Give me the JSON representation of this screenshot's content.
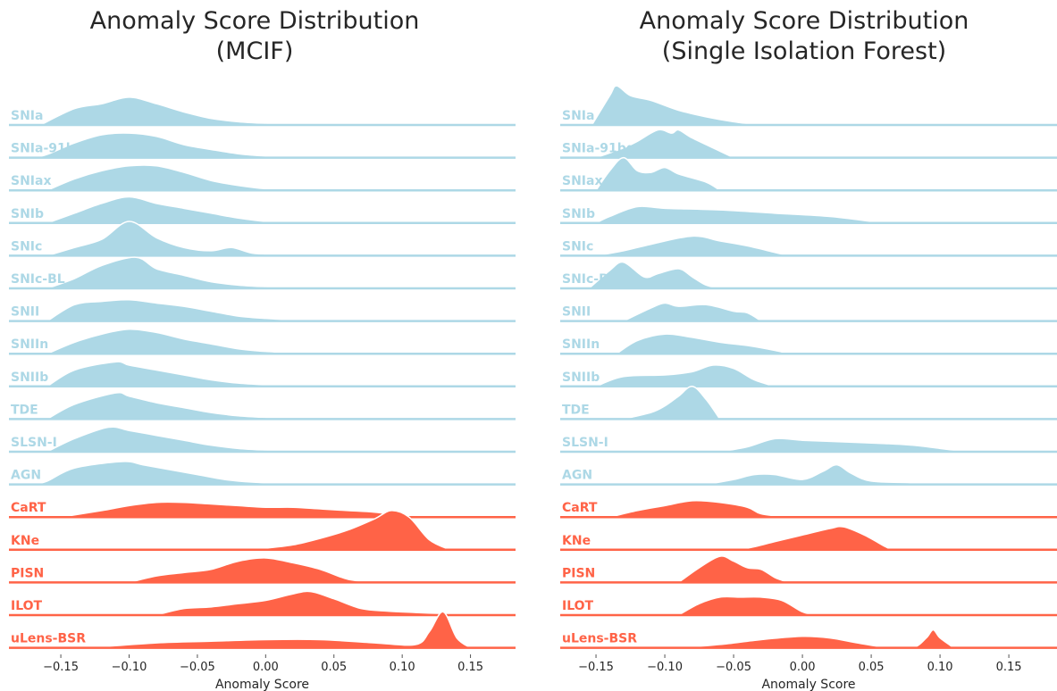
{
  "chart_data": [
    {
      "type": "ridgeline",
      "title": [
        "Anomaly Score Distribution",
        "(MCIF)"
      ],
      "xlabel": "Anomaly Score",
      "xlim": [
        -0.188,
        0.183
      ],
      "xticks": [
        {
          "value": -0.15,
          "label": "−0.15"
        },
        {
          "value": -0.1,
          "label": "−0.10"
        },
        {
          "value": -0.05,
          "label": "−0.05"
        },
        {
          "value": 0,
          "label": "0.00"
        },
        0.05,
        {
          "value": 0.1,
          "label": "0.10"
        },
        0.15
      ],
      "series": [
        {
          "name": "SNIa",
          "color": "#add8e6",
          "x": [
            -0.165,
            -0.14,
            -0.12,
            -0.1,
            -0.08,
            -0.06,
            -0.04,
            -0.02,
            0,
            0.02,
            0.04
          ],
          "values": [
            0,
            0.5,
            0.65,
            0.85,
            0.65,
            0.4,
            0.2,
            0.1,
            0.05,
            0.02,
            0
          ]
        },
        {
          "name": "SNIa-91bg",
          "color": "#add8e6",
          "x": [
            -0.17,
            -0.16,
            -0.14,
            -0.12,
            -0.1,
            -0.08,
            -0.06,
            -0.04,
            -0.02,
            0,
            0.02,
            0.04
          ],
          "values": [
            0,
            0.1,
            0.45,
            0.7,
            0.75,
            0.65,
            0.4,
            0.25,
            0.12,
            0.05,
            0.02,
            0
          ]
        },
        {
          "name": "SNIax",
          "color": "#add8e6",
          "x": [
            -0.16,
            -0.14,
            -0.12,
            -0.1,
            -0.08,
            -0.06,
            -0.04,
            -0.02,
            0,
            0.02,
            0.04
          ],
          "values": [
            0,
            0.35,
            0.6,
            0.75,
            0.75,
            0.55,
            0.3,
            0.15,
            0.05,
            0.02,
            0
          ]
        },
        {
          "name": "SNIb",
          "color": "#add8e6",
          "x": [
            -0.16,
            -0.14,
            -0.12,
            -0.1,
            -0.08,
            -0.06,
            -0.04,
            -0.02,
            0,
            0.02,
            0.04
          ],
          "values": [
            0,
            0.3,
            0.6,
            0.8,
            0.6,
            0.45,
            0.3,
            0.15,
            0.05,
            0.02,
            0
          ]
        },
        {
          "name": "SNIc",
          "color": "#add8e6",
          "x": [
            -0.16,
            -0.14,
            -0.12,
            -0.1,
            -0.08,
            -0.06,
            -0.04,
            -0.025,
            -0.01,
            0.01,
            0.03
          ],
          "values": [
            0,
            0.25,
            0.5,
            1.05,
            0.55,
            0.25,
            0.15,
            0.25,
            0.08,
            0.03,
            0
          ]
        },
        {
          "name": "SNIc-BL",
          "color": "#add8e6",
          "x": [
            -0.16,
            -0.14,
            -0.12,
            -0.095,
            -0.08,
            -0.06,
            -0.04,
            -0.02,
            0,
            0.02,
            0.04
          ],
          "values": [
            0,
            0.3,
            0.7,
            0.95,
            0.6,
            0.4,
            0.2,
            0.1,
            0.05,
            0.02,
            0
          ]
        },
        {
          "name": "SNII",
          "color": "#add8e6",
          "x": [
            -0.16,
            -0.14,
            -0.12,
            -0.1,
            -0.08,
            -0.06,
            -0.04,
            -0.02,
            0,
            0.02,
            0.04
          ],
          "values": [
            0,
            0.5,
            0.6,
            0.65,
            0.55,
            0.45,
            0.3,
            0.15,
            0.08,
            0.03,
            0
          ]
        },
        {
          "name": "SNIIn",
          "color": "#add8e6",
          "x": [
            -0.16,
            -0.14,
            -0.12,
            -0.1,
            -0.08,
            -0.06,
            -0.04,
            -0.02,
            0,
            0.02,
            0.04
          ],
          "values": [
            0,
            0.35,
            0.6,
            0.75,
            0.65,
            0.45,
            0.3,
            0.15,
            0.07,
            0.03,
            0
          ]
        },
        {
          "name": "SNIIb",
          "color": "#add8e6",
          "x": [
            -0.16,
            -0.14,
            -0.11,
            -0.1,
            -0.08,
            -0.06,
            -0.04,
            -0.02,
            0,
            0.02,
            0.04
          ],
          "values": [
            0,
            0.5,
            0.75,
            0.65,
            0.5,
            0.35,
            0.2,
            0.1,
            0.05,
            0.02,
            0
          ]
        },
        {
          "name": "TDE",
          "color": "#add8e6",
          "x": [
            -0.16,
            -0.14,
            -0.11,
            -0.1,
            -0.08,
            -0.06,
            -0.04,
            -0.02,
            0,
            0.02,
            0.04
          ],
          "values": [
            0,
            0.45,
            0.8,
            0.7,
            0.5,
            0.35,
            0.2,
            0.1,
            0.05,
            0.02,
            0
          ]
        },
        {
          "name": "SLSN-I",
          "color": "#add8e6",
          "x": [
            -0.16,
            -0.14,
            -0.115,
            -0.1,
            -0.08,
            -0.06,
            -0.04,
            -0.02,
            0,
            0.02,
            0.04
          ],
          "values": [
            0,
            0.4,
            0.75,
            0.65,
            0.5,
            0.35,
            0.2,
            0.1,
            0.05,
            0.02,
            0
          ]
        },
        {
          "name": "AGN",
          "color": "#add8e6",
          "x": [
            -0.17,
            -0.16,
            -0.14,
            -0.105,
            -0.09,
            -0.07,
            -0.05,
            -0.03,
            -0.01,
            0.01,
            0.03
          ],
          "values": [
            0,
            0.1,
            0.5,
            0.7,
            0.6,
            0.45,
            0.3,
            0.15,
            0.07,
            0.03,
            0
          ]
        },
        {
          "name": "CaRT",
          "color": "#ff6347",
          "x": [
            -0.15,
            -0.12,
            -0.1,
            -0.08,
            -0.06,
            -0.04,
            -0.02,
            0,
            0.02,
            0.04,
            0.06,
            0.08,
            0.1,
            0.12
          ],
          "values": [
            0,
            0.2,
            0.35,
            0.45,
            0.45,
            0.4,
            0.35,
            0.3,
            0.3,
            0.25,
            0.2,
            0.15,
            0.05,
            0
          ]
        },
        {
          "name": "KNe",
          "color": "#ff6347",
          "x": [
            -0.02,
            0,
            0.02,
            0.04,
            0.06,
            0.08,
            0.092,
            0.105,
            0.12,
            0.135
          ],
          "values": [
            0,
            0.05,
            0.15,
            0.35,
            0.6,
            0.95,
            1.2,
            1.0,
            0.3,
            0
          ]
        },
        {
          "name": "PISN",
          "color": "#ff6347",
          "x": [
            -0.1,
            -0.08,
            -0.06,
            -0.04,
            -0.02,
            0,
            0.02,
            0.04,
            0.06,
            0.08
          ],
          "values": [
            0,
            0.2,
            0.3,
            0.4,
            0.65,
            0.75,
            0.6,
            0.4,
            0.1,
            0
          ]
        },
        {
          "name": "ILOT",
          "color": "#ff6347",
          "x": [
            -0.08,
            -0.06,
            -0.04,
            -0.02,
            0,
            0.02,
            0.033,
            0.05,
            0.07,
            0.09,
            0.11,
            0.13,
            0.15
          ],
          "values": [
            0,
            0.2,
            0.25,
            0.35,
            0.45,
            0.65,
            0.72,
            0.5,
            0.2,
            0.12,
            0.08,
            0.04,
            0
          ]
        },
        {
          "name": "uLens-BSR",
          "color": "#ff6347",
          "x": [
            -0.13,
            -0.08,
            -0.04,
            0,
            0.04,
            0.08,
            0.11,
            0.12,
            0.13,
            0.14,
            0.15
          ],
          "values": [
            0,
            0.15,
            0.2,
            0.25,
            0.25,
            0.15,
            0.1,
            0.5,
            1.1,
            0.3,
            0
          ]
        }
      ]
    },
    {
      "type": "ridgeline",
      "title": [
        "Anomaly Score Distribution",
        "(Single Isolation Forest)"
      ],
      "xlabel": "Anomaly Score",
      "xlim": [
        -0.176,
        0.185
      ],
      "xticks": [
        {
          "value": -0.15,
          "label": "−0.15"
        },
        {
          "value": -0.1,
          "label": "−0.10"
        },
        {
          "value": -0.05,
          "label": "−0.05"
        },
        {
          "value": 0,
          "label": "0.00"
        },
        0.05,
        {
          "value": 0.1,
          "label": "0.10"
        },
        0.15
      ],
      "series": [
        {
          "name": "SNIa",
          "color": "#add8e6",
          "x": [
            -0.153,
            -0.14,
            -0.135,
            -0.125,
            -0.11,
            -0.09,
            -0.07,
            -0.05,
            -0.03
          ],
          "values": [
            0,
            0.9,
            1.2,
            0.9,
            0.75,
            0.45,
            0.25,
            0.1,
            0
          ]
        },
        {
          "name": "SNIa-91bg",
          "color": "#add8e6",
          "x": [
            -0.15,
            -0.13,
            -0.12,
            -0.105,
            -0.095,
            -0.09,
            -0.08,
            -0.06,
            -0.05
          ],
          "values": [
            0,
            0.3,
            0.5,
            0.85,
            0.75,
            0.85,
            0.6,
            0.2,
            0
          ]
        },
        {
          "name": "SNIax",
          "color": "#add8e6",
          "x": [
            -0.15,
            -0.14,
            -0.13,
            -0.12,
            -0.11,
            -0.1,
            -0.09,
            -0.07,
            -0.06
          ],
          "values": [
            0,
            0.6,
            1.0,
            0.6,
            0.55,
            0.7,
            0.5,
            0.25,
            0
          ]
        },
        {
          "name": "SNIb",
          "color": "#add8e6",
          "x": [
            -0.15,
            -0.14,
            -0.12,
            -0.1,
            -0.06,
            -0.02,
            0.02,
            0.05,
            0.06
          ],
          "values": [
            0,
            0.2,
            0.5,
            0.45,
            0.4,
            0.3,
            0.2,
            0.05,
            0
          ]
        },
        {
          "name": "SNIc",
          "color": "#add8e6",
          "x": [
            -0.15,
            -0.13,
            -0.11,
            -0.08,
            -0.06,
            -0.04,
            -0.02,
            -0.01
          ],
          "values": [
            0,
            0.15,
            0.35,
            0.6,
            0.45,
            0.3,
            0.1,
            0
          ]
        },
        {
          "name": "SNIc-BL",
          "color": "#add8e6",
          "x": [
            -0.155,
            -0.14,
            -0.13,
            -0.115,
            -0.105,
            -0.09,
            -0.08,
            -0.07,
            -0.06
          ],
          "values": [
            0,
            0.55,
            0.8,
            0.35,
            0.45,
            0.6,
            0.35,
            0.1,
            0
          ]
        },
        {
          "name": "SNII",
          "color": "#add8e6",
          "x": [
            -0.13,
            -0.11,
            -0.1,
            -0.09,
            -0.07,
            -0.05,
            -0.04,
            -0.03
          ],
          "values": [
            0,
            0.4,
            0.55,
            0.45,
            0.5,
            0.3,
            0.25,
            0
          ]
        },
        {
          "name": "SNIIn",
          "color": "#add8e6",
          "x": [
            -0.135,
            -0.12,
            -0.1,
            -0.08,
            -0.06,
            -0.04,
            -0.02,
            -0.01
          ],
          "values": [
            0,
            0.4,
            0.6,
            0.5,
            0.35,
            0.25,
            0.1,
            0
          ]
        },
        {
          "name": "SNIIb",
          "color": "#add8e6",
          "x": [
            -0.15,
            -0.13,
            -0.1,
            -0.08,
            -0.065,
            -0.05,
            -0.035,
            -0.02
          ],
          "values": [
            0,
            0.3,
            0.35,
            0.45,
            0.65,
            0.55,
            0.2,
            0
          ]
        },
        {
          "name": "TDE",
          "color": "#add8e6",
          "x": [
            -0.13,
            -0.11,
            -0.1,
            -0.09,
            -0.08,
            -0.07,
            -0.06
          ],
          "values": [
            0,
            0.2,
            0.4,
            0.7,
            1.0,
            0.6,
            0
          ]
        },
        {
          "name": "SLSN-I",
          "color": "#add8e6",
          "x": [
            -0.06,
            -0.04,
            -0.02,
            0,
            0.03,
            0.06,
            0.08,
            0.1,
            0.12
          ],
          "values": [
            0,
            0.15,
            0.4,
            0.35,
            0.3,
            0.25,
            0.2,
            0.1,
            0
          ]
        },
        {
          "name": "AGN",
          "color": "#add8e6",
          "x": [
            -0.07,
            -0.05,
            -0.035,
            -0.02,
            0,
            0.015,
            0.025,
            0.035,
            0.05,
            0.08,
            0.1
          ],
          "values": [
            0,
            0.15,
            0.3,
            0.3,
            0.15,
            0.4,
            0.6,
            0.35,
            0.1,
            0.05,
            0
          ]
        },
        {
          "name": "CaRT",
          "color": "#ff6347",
          "x": [
            -0.14,
            -0.12,
            -0.1,
            -0.08,
            -0.06,
            -0.04,
            -0.03,
            -0.01
          ],
          "values": [
            0,
            0.2,
            0.35,
            0.5,
            0.45,
            0.3,
            0.1,
            0
          ]
        },
        {
          "name": "KNe",
          "color": "#ff6347",
          "x": [
            -0.06,
            -0.04,
            -0.02,
            0,
            0.02,
            0.03,
            0.045,
            0.06,
            0.065
          ],
          "values": [
            0,
            0.05,
            0.25,
            0.45,
            0.65,
            0.7,
            0.45,
            0.1,
            0
          ]
        },
        {
          "name": "PISN",
          "color": "#ff6347",
          "x": [
            -0.09,
            -0.075,
            -0.06,
            -0.05,
            -0.04,
            -0.03,
            -0.02,
            -0.01
          ],
          "values": [
            0,
            0.45,
            0.8,
            0.65,
            0.45,
            0.4,
            0.15,
            0
          ]
        },
        {
          "name": "ILOT",
          "color": "#ff6347",
          "x": [
            -0.09,
            -0.075,
            -0.06,
            -0.045,
            -0.03,
            -0.015,
            0,
            0.01
          ],
          "values": [
            0,
            0.35,
            0.55,
            0.55,
            0.55,
            0.45,
            0.1,
            0
          ]
        },
        {
          "name": "uLens-BSR",
          "color": "#ff6347",
          "x": [
            -0.09,
            -0.06,
            -0.03,
            0,
            0.02,
            0.04,
            0.06,
            0.08,
            0.09,
            0.095,
            0.1,
            0.11
          ],
          "values": [
            0,
            0.1,
            0.25,
            0.35,
            0.3,
            0.15,
            0.02,
            0,
            0.3,
            0.55,
            0.3,
            0
          ]
        }
      ]
    }
  ]
}
